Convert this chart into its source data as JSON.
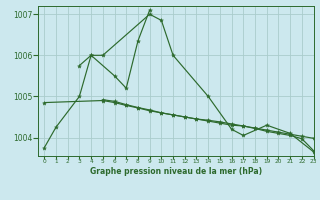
{
  "title": "Graphe pression niveau de la mer (hPa)",
  "bg_color": "#cce8ee",
  "grid_color": "#aacccc",
  "line_color": "#2d6a2d",
  "xlim": [
    -0.5,
    23
  ],
  "ylim": [
    1003.55,
    1007.2
  ],
  "yticks": [
    1004,
    1005,
    1006,
    1007
  ],
  "xtick_labels": [
    "0",
    "1",
    "2",
    "3",
    "4",
    "5",
    "6",
    "7",
    "8",
    "9",
    "10",
    "11",
    "12",
    "13",
    "14",
    "15",
    "16",
    "17",
    "18",
    "19",
    "20",
    "21",
    "22",
    "23"
  ],
  "series": [
    {
      "x": [
        0,
        1,
        3,
        4,
        5,
        9,
        10,
        11,
        14,
        16,
        17,
        19,
        21,
        23
      ],
      "y": [
        1003.75,
        1004.25,
        1005.0,
        1006.0,
        1006.0,
        1007.0,
        1006.85,
        1006.0,
        1005.0,
        1004.2,
        1004.05,
        1004.3,
        1004.1,
        1003.65
      ]
    },
    {
      "x": [
        3,
        4,
        6,
        7,
        8,
        9
      ],
      "y": [
        1005.75,
        1006.0,
        1005.5,
        1005.2,
        1006.35,
        1007.1
      ]
    },
    {
      "x": [
        0,
        5,
        6,
        7,
        8,
        9,
        10,
        11,
        12,
        13,
        14,
        15,
        16,
        17,
        18,
        19,
        20,
        21,
        22,
        23
      ],
      "y": [
        1004.85,
        1004.9,
        1004.85,
        1004.78,
        1004.72,
        1004.65,
        1004.6,
        1004.55,
        1004.5,
        1004.45,
        1004.42,
        1004.38,
        1004.33,
        1004.28,
        1004.23,
        1004.18,
        1004.13,
        1004.08,
        1004.03,
        1003.98
      ]
    },
    {
      "x": [
        5,
        6,
        7,
        8,
        9,
        10,
        11,
        12,
        13,
        14,
        15,
        16,
        17,
        18,
        19,
        20,
        21,
        22,
        23
      ],
      "y": [
        1004.92,
        1004.88,
        1004.8,
        1004.73,
        1004.67,
        1004.6,
        1004.55,
        1004.5,
        1004.45,
        1004.4,
        1004.35,
        1004.3,
        1004.28,
        1004.22,
        1004.15,
        1004.1,
        1004.05,
        1003.97,
        1003.68
      ]
    }
  ]
}
